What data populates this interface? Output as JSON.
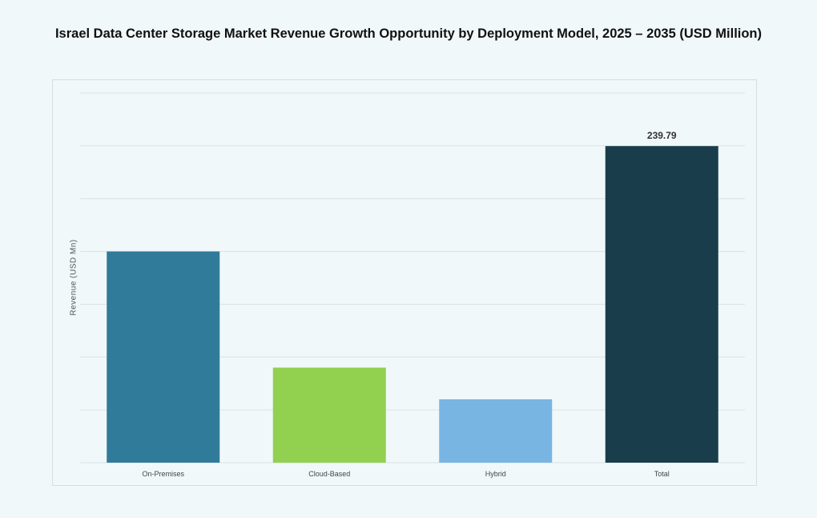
{
  "chart_data": {
    "type": "bar",
    "title": "Israel Data Center Storage Market Revenue Growth Opportunity by Deployment Model, 2025 – 2035 (USD Million)",
    "xlabel": "",
    "ylabel": "Revenue (USD Mn)",
    "categories": [
      "On-Premises",
      "Cloud-Based",
      "Hybrid",
      "Total"
    ],
    "values": [
      160,
      72,
      48,
      239.79
    ],
    "data_labels": [
      "",
      "",
      "",
      "239.79"
    ],
    "colors": [
      "#317b9a",
      "#92d050",
      "#79b5e2",
      "#193d4a"
    ],
    "ylim": [
      0,
      280
    ],
    "grid": true,
    "legend": "none"
  }
}
